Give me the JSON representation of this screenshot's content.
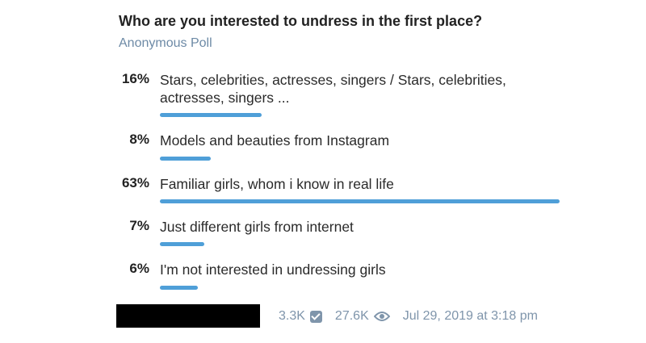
{
  "poll": {
    "question": "Who are you interested to undress in the first place?",
    "type": "Anonymous Poll",
    "options": [
      {
        "percent_label": "16%",
        "percent": 16,
        "label": "Stars, celebrities, actresses, singers / Stars, celebrities, actresses, singers ..."
      },
      {
        "percent_label": "8%",
        "percent": 8,
        "label": "Models and beauties from Instagram"
      },
      {
        "percent_label": "63%",
        "percent": 63,
        "label": "Familiar girls, whom i know in real life"
      },
      {
        "percent_label": "7%",
        "percent": 7,
        "label": "Just different girls from internet"
      },
      {
        "percent_label": "6%",
        "percent": 6,
        "label": "I'm not interested in undressing girls"
      }
    ],
    "bar_color": "#4f9fd8"
  },
  "footer": {
    "votes": "3.3K",
    "votes_icon": "checkbox-icon",
    "views": "27.6K",
    "views_icon": "eye-icon",
    "date": "Jul 29, 2019 at 3:18 pm"
  }
}
